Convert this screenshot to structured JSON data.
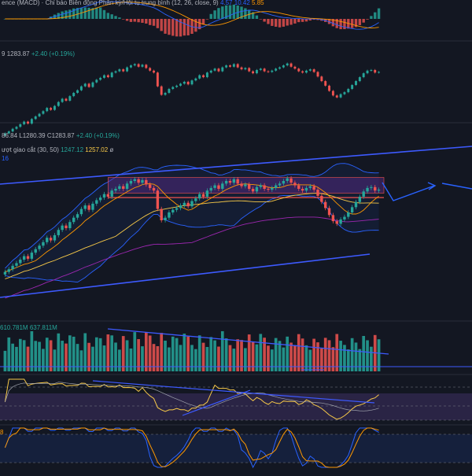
{
  "colors": {
    "background": "#131722",
    "up": "#26a69a",
    "down": "#ef5350",
    "trend_line": "#3d5afe",
    "band": "#2962ff",
    "box_fill": "#5b2d8c",
    "box_line": "#ef5350",
    "ma_fast": "#ff9800",
    "ma_slow": "#f7c948",
    "ma_long": "#9c27b0",
    "rsi_line": "#f7c948",
    "stoch_k": "#2962ff",
    "stoch_d": "#ff9800"
  },
  "macd": {
    "title": "ence (MACD) · Chỉ báo Biến động Phân kỳ/Hội tụ trung bình (12, 26, close, 9)",
    "v1": "4.57",
    "v2": "10.42",
    "v3": "5.85"
  },
  "mini": {
    "prefix": "9",
    "close": "1283.87",
    "change": "+2.40 (+0.19%)"
  },
  "main": {
    "ohlc_prefix": "86.84",
    "low": "L1280.39",
    "close": "C1283.87",
    "change": "+2.40 (+0.19%)",
    "ma_label": "ượt giao cắt (30, 50)",
    "ma1": "1247.12",
    "ma2": "1257.02",
    "ma_suffix": "ø",
    "band_label": "16"
  },
  "volume": {
    "v1": "610.781M",
    "v2": "637.811M"
  },
  "stoch": {
    "label": "8"
  },
  "chart_data": {
    "type": "candlestick",
    "panes": [
      "macd",
      "price-mini",
      "price",
      "volume",
      "rsi",
      "stochastic"
    ],
    "close": [
      1190,
      1193,
      1197,
      1200,
      1204,
      1208,
      1205,
      1212,
      1216,
      1220,
      1224,
      1229,
      1226,
      1232,
      1238,
      1243,
      1240,
      1247,
      1252,
      1256,
      1262,
      1266,
      1261,
      1268,
      1272,
      1275,
      1279,
      1276,
      1283,
      1285,
      1288,
      1285,
      1291,
      1294,
      1296,
      1292,
      1295,
      1290,
      1286,
      1283,
      1262,
      1249,
      1252,
      1258,
      1261,
      1263,
      1266,
      1269,
      1265,
      1271,
      1274,
      1279,
      1276,
      1283,
      1286,
      1289,
      1285,
      1291,
      1294,
      1292,
      1296,
      1291,
      1288,
      1290,
      1285,
      1282,
      1287,
      1289,
      1285,
      1284,
      1286,
      1289,
      1291,
      1294,
      1297,
      1292,
      1289,
      1285,
      1283,
      1286,
      1288,
      1284,
      1277,
      1270,
      1263,
      1255,
      1248,
      1245,
      1250,
      1253,
      1258,
      1264,
      1270,
      1276,
      1282,
      1286,
      1287,
      1283,
      1284
    ],
    "volume": [
      522,
      548,
      531,
      575,
      498,
      563,
      540,
      588,
      519,
      602,
      571,
      544,
      596,
      512,
      583,
      553,
      608,
      527,
      591,
      560,
      534,
      617,
      546,
      579,
      523,
      598,
      566,
      541,
      613,
      587,
      552,
      571,
      596,
      537,
      603,
      582,
      548,
      575,
      611,
      559,
      640,
      622,
      588,
      563,
      534,
      601,
      577,
      552,
      594,
      539,
      566,
      582,
      548,
      573,
      527,
      559,
      541,
      588,
      563,
      536,
      578,
      519,
      601,
      546,
      567,
      531,
      590,
      548,
      574,
      525,
      556,
      539,
      583,
      561,
      534,
      518,
      572,
      545,
      560,
      532,
      549,
      527,
      556,
      538,
      515,
      562,
      529,
      547,
      522,
      540,
      558,
      537,
      551,
      524,
      544,
      561,
      538,
      532,
      547
    ]
  }
}
